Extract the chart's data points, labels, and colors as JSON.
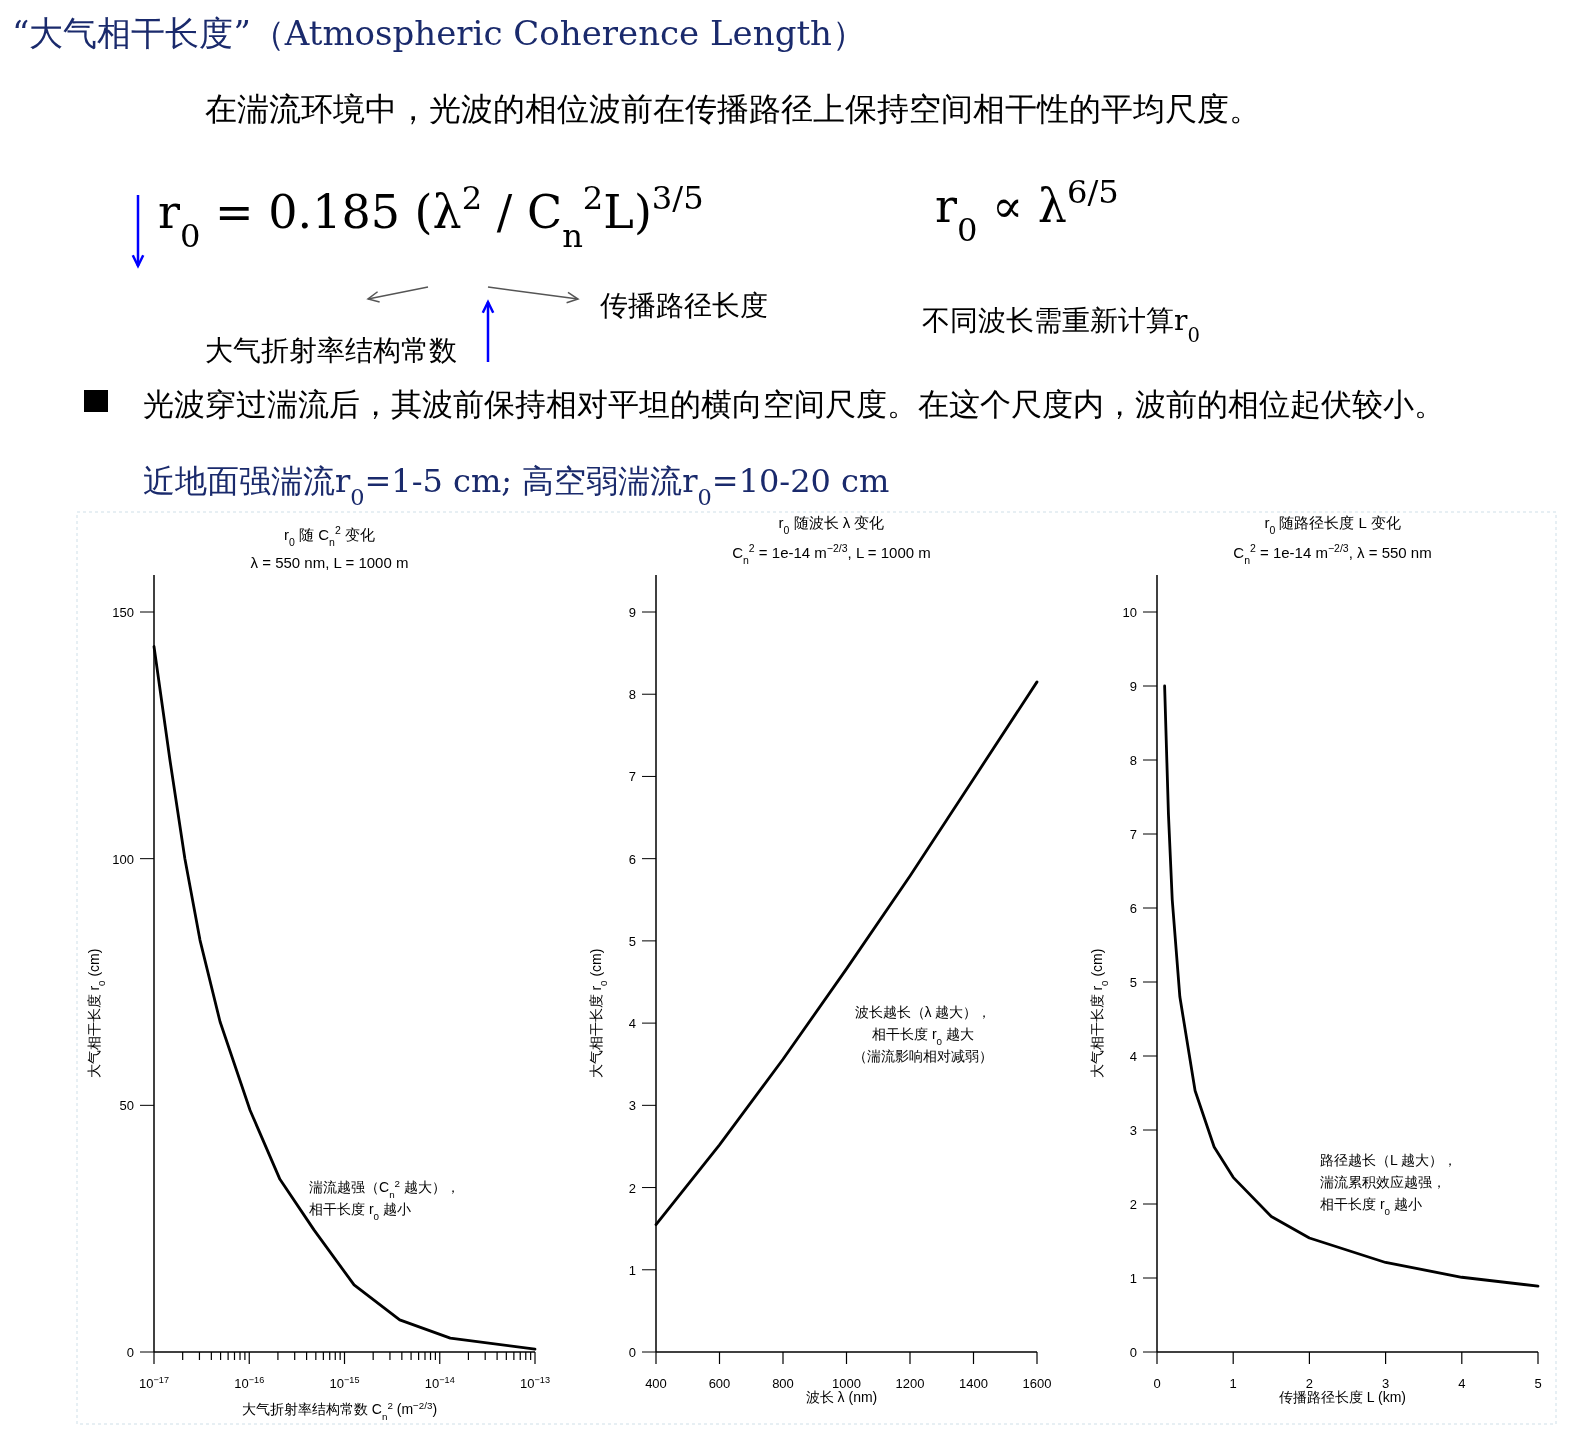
{
  "chart_data": [
    {
      "type": "other",
      "title": "“大气相干长度”（Atmospheric Coherence Length）",
      "subtitle": "在湍流环境中，光波的相位波前在传播路径上保持空间相干性的平均尺度。",
      "annotations": [
        "r$_{0}$ = 0.185 (λ$^{2}$ / C$_{n}$$^{2}$L)$^{3/5}$",
        "r$_{0}$ ∝ λ$^{6/5}$",
        "传播路径长度",
        "大气折射率结构常数",
        "不同波长需重新计算r$_{0}$",
        "光波穿过湍流后，其波前保持相对平坦的横向空间尺度。在这个尺度内，波前的相位起伏较小。",
        "近地面强湍流r$_{0}$=1-5 cm; 高空弱湍流r$_{0}$=10-20 cm"
      ]
    },
    {
      "type": "line",
      "title": "r$_{0}$ 随 C$_{n}$$^{2}$ 变化",
      "subtitle": "λ = 550 nm, L = 1000 m",
      "xlabel": "大气折射率结构常数 C$_{n}$$^{2}$ (m$^{−2/3}$)",
      "ylabel": "大气相干长度 r$_{0}$ (cm)",
      "log": "x",
      "x": [
        1e-17,
        1.47e-17,
        2.11e-17,
        3.04e-17,
        4.93e-17,
        1.02e-16,
        2.1e-16,
        4.8e-16,
        1.26e-15,
        3.8e-15,
        1.29e-14,
        1e-13
      ],
      "series": [
        {
          "color": "#000000",
          "values": [
            143,
            120,
            100,
            83.5,
            67,
            49,
            35,
            24.7,
            13.6,
            6.5,
            2.8,
            0.6
          ]
        }
      ],
      "xlim": [
        1e-17,
        1e-13
      ],
      "ylim": [
        0,
        157.5
      ],
      "xticks": [
        {
          "value": 1e-17,
          "label": "10$^{−17}$"
        },
        {
          "value": 2e-17,
          "label": null
        },
        {
          "value": 3e-17,
          "label": null
        },
        {
          "value": 4e-17,
          "label": null
        },
        {
          "value": 5e-17,
          "label": null
        },
        {
          "value": 6e-17,
          "label": null
        },
        {
          "value": 7e-17,
          "label": null
        },
        {
          "value": 8e-17,
          "label": null
        },
        {
          "value": 9e-17,
          "label": null
        },
        {
          "value": 1e-16,
          "label": "10$^{−16}$"
        },
        {
          "value": 2e-16,
          "label": null
        },
        {
          "value": 3e-16,
          "label": null
        },
        {
          "value": 4e-16,
          "label": null
        },
        {
          "value": 5e-16,
          "label": null
        },
        {
          "value": 6e-16,
          "label": null
        },
        {
          "value": 7e-16,
          "label": null
        },
        {
          "value": 8e-16,
          "label": null
        },
        {
          "value": 9e-16,
          "label": null
        },
        {
          "value": 1e-15,
          "label": "10$^{−15}$"
        },
        {
          "value": 2e-15,
          "label": null
        },
        {
          "value": 3e-15,
          "label": null
        },
        {
          "value": 4e-15,
          "label": null
        },
        {
          "value": 5e-15,
          "label": null
        },
        {
          "value": 6e-15,
          "label": null
        },
        {
          "value": 7e-15,
          "label": null
        },
        {
          "value": 8e-15,
          "label": null
        },
        {
          "value": 9e-15,
          "label": null
        },
        {
          "value": 1e-14,
          "label": "10$^{−14}$"
        },
        {
          "value": 2e-14,
          "label": null
        },
        {
          "value": 3e-14,
          "label": null
        },
        {
          "value": 4e-14,
          "label": null
        },
        {
          "value": 5e-14,
          "label": null
        },
        {
          "value": 6e-14,
          "label": null
        },
        {
          "value": 7e-14,
          "label": null
        },
        {
          "value": 8e-14,
          "label": null
        },
        {
          "value": 9e-14,
          "label": null
        },
        {
          "value": 1e-13,
          "label": "10$^{−13}$"
        }
      ],
      "yticks": [
        0,
        50,
        100,
        150
      ],
      "annotations": [
        "湍流越强（C$_{n}$$^{2}$ 越大），",
        "相干长度 r$_{0}$ 越小"
      ]
    },
    {
      "type": "line",
      "title": "r$_{0}$ 随波长 λ 变化",
      "subtitle": "C$_{n}$$^{2}$ = 1e-14 m$^{−2/3}$, L = 1000 m",
      "xlabel": "波长 λ (nm)",
      "ylabel": "大气相干长度 r$_{0}$ (cm)",
      "x": [
        400,
        600,
        800,
        1000,
        1200,
        1400,
        1600
      ],
      "series": [
        {
          "color": "#000000",
          "values": [
            1.55,
            2.52,
            3.56,
            4.66,
            5.79,
            6.97,
            8.15
          ]
        }
      ],
      "xlim": [
        400,
        1600
      ],
      "ylim": [
        0,
        9.45
      ],
      "xticks": [
        400,
        600,
        800,
        1000,
        1200,
        1400,
        1600
      ],
      "yticks": [
        0,
        1,
        2,
        3,
        4,
        5,
        6,
        7,
        8,
        9
      ],
      "annotations": [
        "波长越长（λ 越大），",
        "相干长度 r$_{0}$ 越大",
        "（湍流影响相对减弱）"
      ]
    },
    {
      "type": "line",
      "title": "r$_{0}$ 随路径长度 L 变化",
      "subtitle": "C$_{n}$$^{2}$ = 1e-14 m$^{−2/3}$, λ = 550 nm",
      "xlabel": "传播路径长度 L (km)",
      "ylabel": "大气相干长度 r$_{0}$ (cm)",
      "x": [
        0.1,
        0.15,
        0.2,
        0.3,
        0.5,
        0.75,
        1,
        1.5,
        2,
        3,
        4,
        5
      ],
      "series": [
        {
          "color": "#000000",
          "values": [
            9.0,
            7.27,
            6.11,
            4.8,
            3.53,
            2.77,
            2.36,
            1.83,
            1.54,
            1.21,
            1.01,
            0.89
          ]
        }
      ],
      "xlim": [
        0,
        5
      ],
      "ylim": [
        0,
        10.5
      ],
      "xticks": [
        0,
        1,
        2,
        3,
        4,
        5
      ],
      "yticks": [
        0,
        1,
        2,
        3,
        4,
        5,
        6,
        7,
        8,
        9,
        10
      ],
      "annotations": [
        "路径越长（L 越大），",
        "湍流累积效应越强，",
        "相干长度 r$_{0}$ 越小"
      ]
    }
  ]
}
